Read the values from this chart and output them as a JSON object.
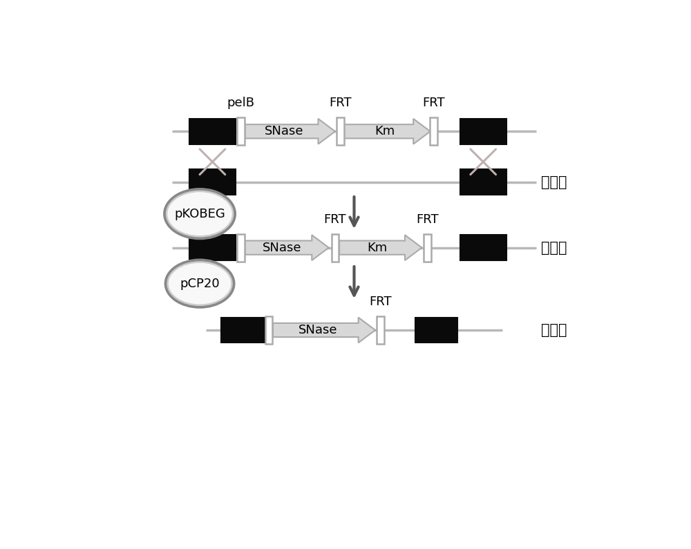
{
  "black_block_color": "#0a0a0a",
  "line_color": "#b8b8b8",
  "arrow_fill": "#d8d8d8",
  "arrow_edge": "#aaaaaa",
  "frt_fill": "#ffffff",
  "frt_edge": "#aaaaaa",
  "cross_color": "#c0b0b0",
  "down_arrow_color": "#555555",
  "ellipse_fill": "#ffffff",
  "ellipse_edge_outer": "#888888",
  "ellipse_edge_inner": "#cccccc",
  "label_chrom": "染色体",
  "label_pelB": "pelB",
  "label_SNase": "SNase",
  "label_FRT": "FRT",
  "label_Km": "Km",
  "label_pKOBEG": "pKOBEG",
  "label_pCP20": "pCP20",
  "font_size": 13,
  "font_size_chrom": 15
}
